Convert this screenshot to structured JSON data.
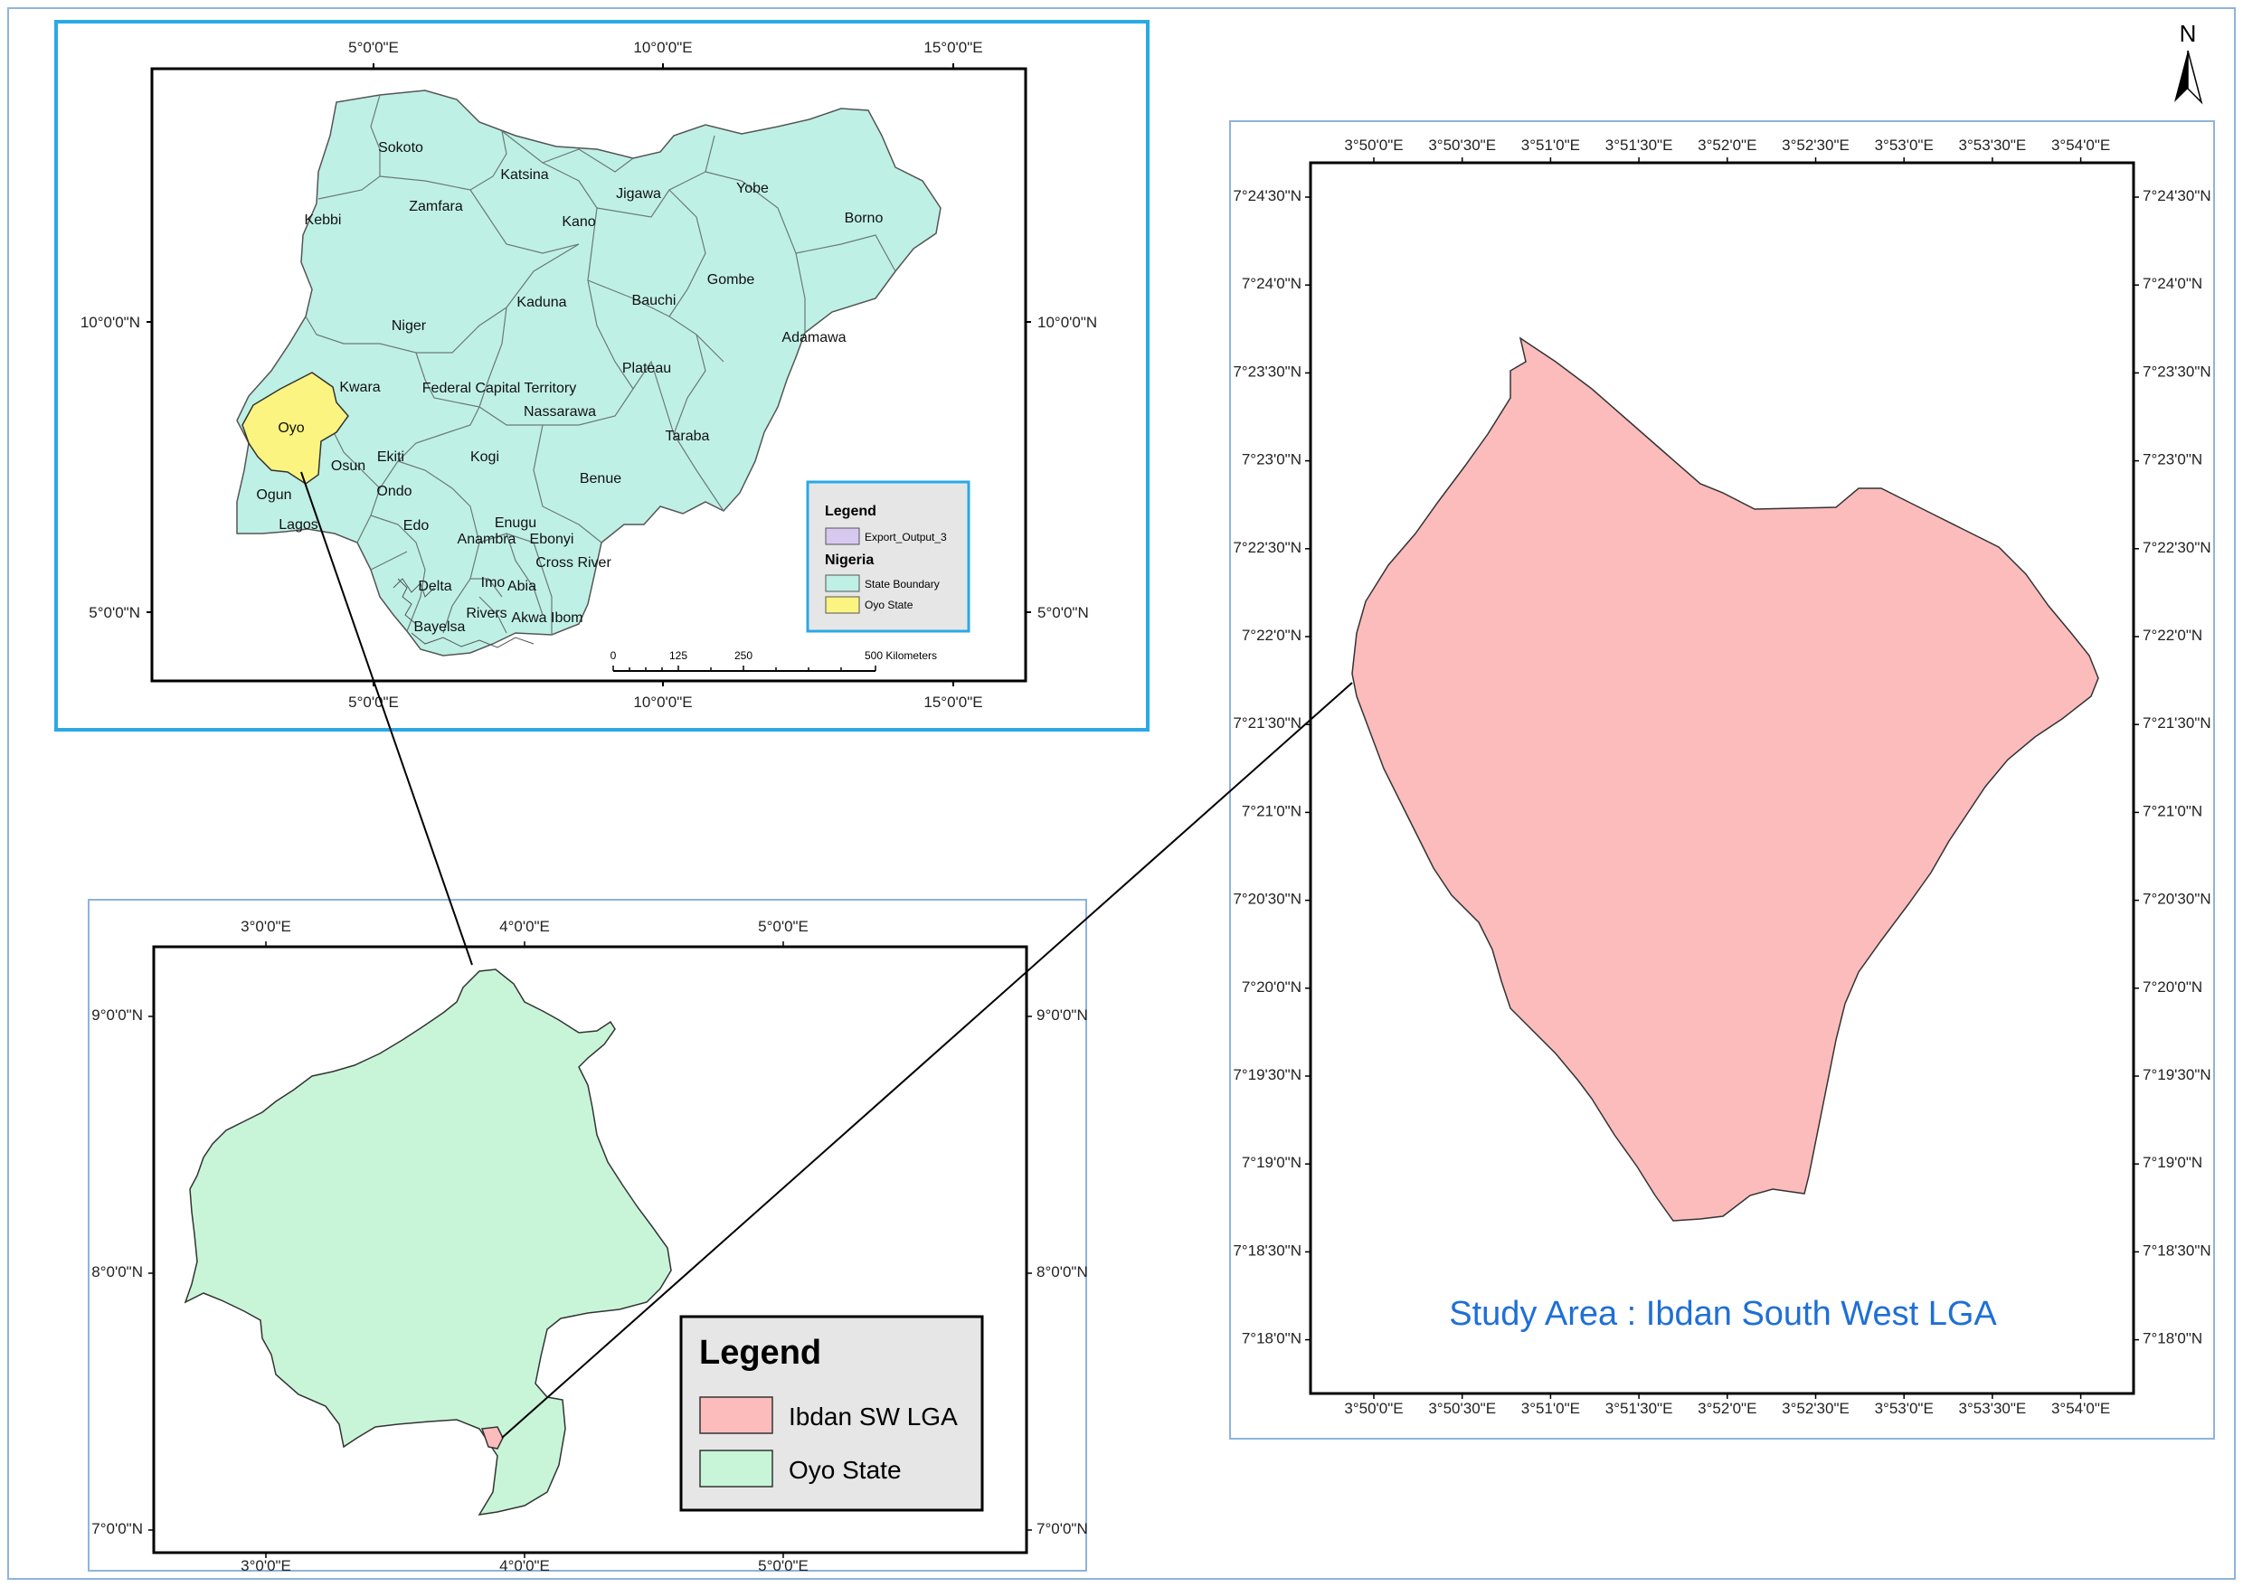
{
  "north_arrow": {
    "label": "N"
  },
  "colors": {
    "frame_blue": "#2aa9e6",
    "frame_light": "#8fb3dc",
    "nigeria_fill": "#bff0e6",
    "oyo_fill": "#fbf480",
    "oyo_state_fill": "#c8f5d8",
    "lga_fill": "#fcbcbc",
    "legend_bg": "#e6e6e6",
    "title_blue": "#1f6fd6",
    "export_fill": "#d6c8ef"
  },
  "nigeria_map": {
    "top_lon_labels": [
      "5°0'0\"E",
      "10°0'0\"E",
      "15°0'0\"E"
    ],
    "bottom_lon_labels": [
      "5°0'0\"E",
      "10°0'0\"E",
      "15°0'0\"E"
    ],
    "left_lat_labels": [
      "10°0'0\"N",
      "5°0'0\"N"
    ],
    "right_lat_labels": [
      "10°0'0\"N",
      "5°0'0\"N"
    ],
    "states": [
      "Sokoto",
      "Katsina",
      "Zamfara",
      "Jigawa",
      "Yobe",
      "Kebbi",
      "Kano",
      "Borno",
      "Kaduna",
      "Bauchi",
      "Gombe",
      "Niger",
      "Adamawa",
      "Kwara",
      "Federal Capital Territory",
      "Plateau",
      "Oyo",
      "Nassarawa",
      "Taraba",
      "Osun",
      "Ekiti",
      "Kogi",
      "Benue",
      "Ogun",
      "Ondo",
      "Lagos",
      "Edo",
      "Enugu",
      "Anambra",
      "Ebonyi",
      "Cross River",
      "Delta",
      "Imo",
      "Abia",
      "Rivers",
      "Bayelsa",
      "Akwa Ibom"
    ],
    "legend": {
      "title": "Legend",
      "export_label": "Export_Output_3",
      "group_title": "Nigeria",
      "state_boundary_label": "State Boundary",
      "oyo_label": "Oyo State"
    },
    "scale_bar": {
      "ticks": [
        "0",
        "125",
        "250"
      ],
      "end_label": "500 Kilometers"
    }
  },
  "oyo_map": {
    "top_lon_labels": [
      "3°0'0\"E",
      "4°0'0\"E",
      "5°0'0\"E"
    ],
    "bottom_lon_labels": [
      "3°0'0\"E",
      "4°0'0\"E",
      "5°0'0\"E"
    ],
    "left_lat_labels": [
      "9°0'0\"N",
      "8°0'0\"N",
      "7°0'0\"N"
    ],
    "right_lat_labels": [
      "9°0'0\"N",
      "8°0'0\"N",
      "7°0'0\"N"
    ],
    "legend": {
      "title": "Legend",
      "items": [
        "Ibdan SW LGA",
        "Oyo State"
      ]
    }
  },
  "study_map": {
    "top_lon_labels": [
      "3°50'0\"E",
      "3°50'30\"E",
      "3°51'0\"E",
      "3°51'30\"E",
      "3°52'0\"E",
      "3°52'30\"E",
      "3°53'0\"E",
      "3°53'30\"E",
      "3°54'0\"E"
    ],
    "bottom_lon_labels": [
      "3°50'0\"E",
      "3°50'30\"E",
      "3°51'0\"E",
      "3°51'30\"E",
      "3°52'0\"E",
      "3°52'30\"E",
      "3°53'0\"E",
      "3°53'30\"E",
      "3°54'0\"E"
    ],
    "left_lat_labels": [
      "7°24'30\"N",
      "7°24'0\"N",
      "7°23'30\"N",
      "7°23'0\"N",
      "7°22'30\"N",
      "7°22'0\"N",
      "7°21'30\"N",
      "7°21'0\"N",
      "7°20'30\"N",
      "7°20'0\"N",
      "7°19'30\"N",
      "7°19'0\"N",
      "7°18'30\"N",
      "7°18'0\"N"
    ],
    "right_lat_labels": [
      "7°24'30\"N",
      "7°24'0\"N",
      "7°23'30\"N",
      "7°23'0\"N",
      "7°22'30\"N",
      "7°22'0\"N",
      "7°21'30\"N",
      "7°21'0\"N",
      "7°20'30\"N",
      "7°20'0\"N",
      "7°19'30\"N",
      "7°19'0\"N",
      "7°18'30\"N",
      "7°18'0\"N"
    ],
    "title": "Study Area : Ibdan South West LGA"
  }
}
